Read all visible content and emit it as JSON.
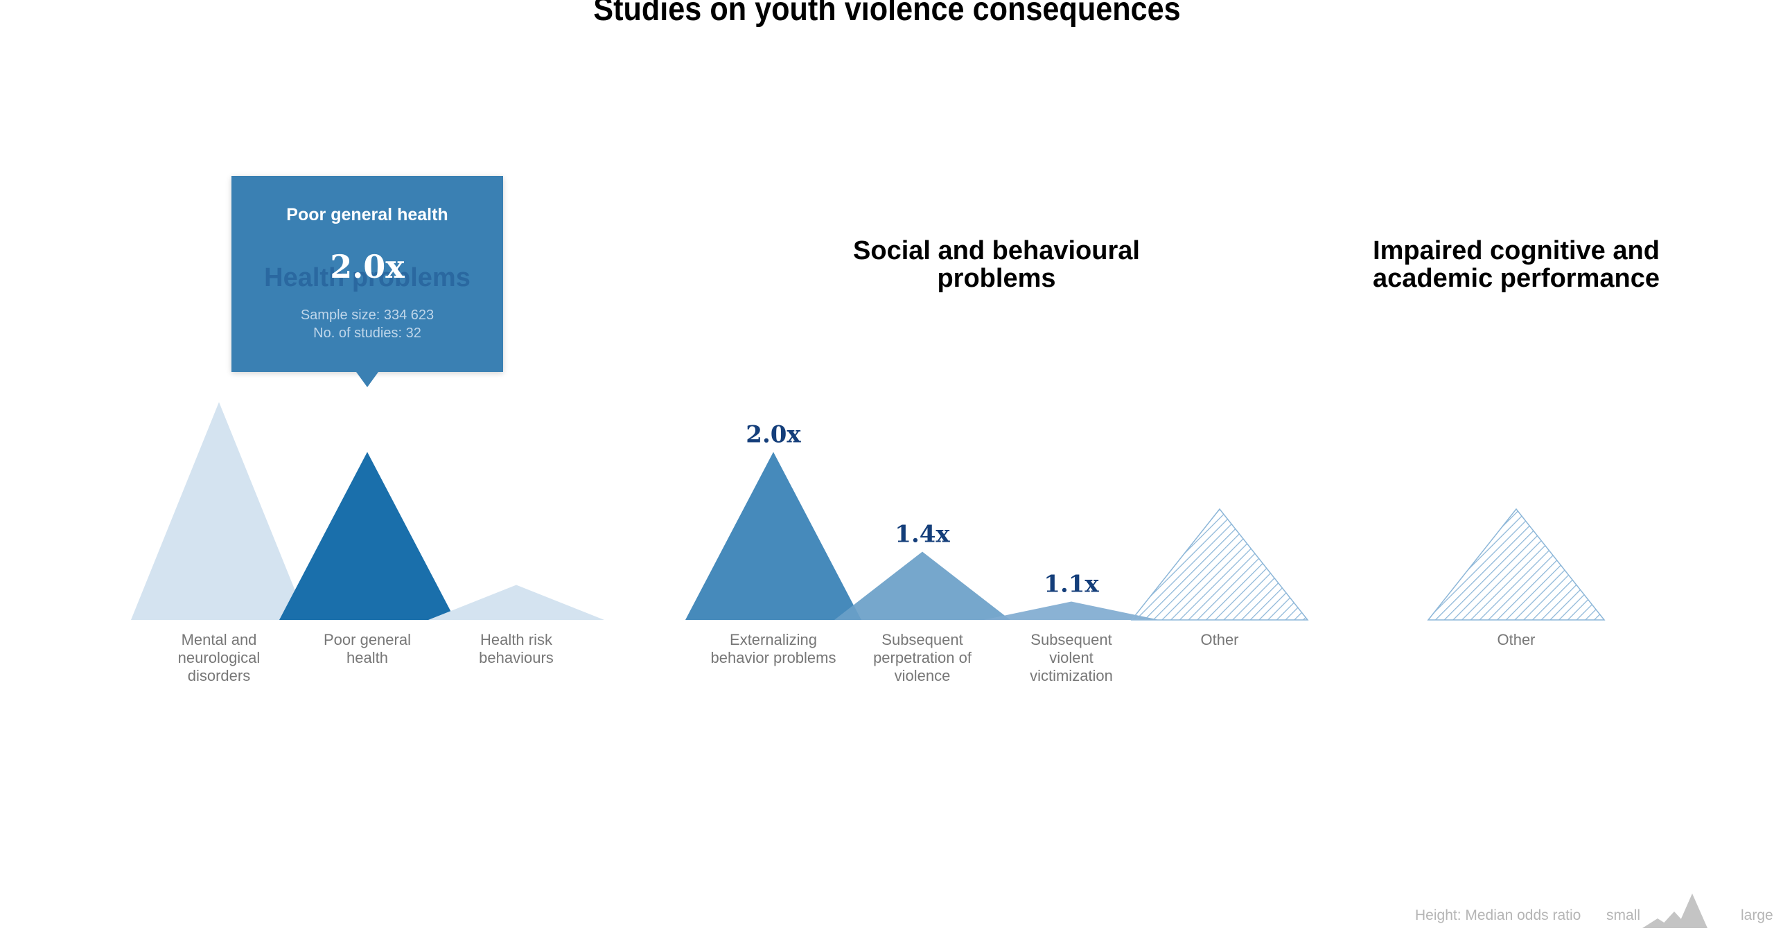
{
  "title": "Studies on youth violence consequences",
  "groups": [
    {
      "title": "Health problems"
    },
    {
      "title": "Social and behavioural\nproblems"
    },
    {
      "title": "Impaired cognitive and\nacademic performance"
    }
  ],
  "tooltip": {
    "title": "Poor general health",
    "value": "2.0x",
    "sample_size": "Sample size: 334 623",
    "studies": "No. of studies: 32"
  },
  "legend": {
    "height_label": "Height: Median odds ratio",
    "small": "small",
    "large": "large"
  },
  "colors": {
    "faded": "#d4e3f0",
    "highlight": "#1a6fab",
    "mid": "#3680b5",
    "light_mid": "#6a9fc8",
    "lighter": "#80abd0",
    "hatch": "#8cb6d8",
    "value_text": "#143e7a",
    "legend_gray": "#c4c4c4"
  },
  "chart_data": {
    "type": "area",
    "series_metric": "Median odds ratio",
    "groups": [
      {
        "name": "Health problems",
        "items": [
          {
            "label": "Mental and\nneurological\ndisorders",
            "value": 2.3,
            "style": "faded"
          },
          {
            "label": "Poor general\nhealth",
            "value": 2.0,
            "value_label": "",
            "style": "highlight"
          },
          {
            "label": "Health risk\nbehaviours",
            "value": 1.2,
            "style": "faded"
          }
        ]
      },
      {
        "name": "Social and behavioural problems",
        "items": [
          {
            "label": "Externalizing\nbehavior problems",
            "value": 2.0,
            "value_label": "2.0x",
            "style": "mid"
          },
          {
            "label": "Subsequent\nperpetration of\nviolence",
            "value": 1.4,
            "value_label": "1.4x",
            "style": "light_mid"
          },
          {
            "label": "Subsequent\nviolent\nvictimization",
            "value": 1.1,
            "value_label": "1.1x",
            "style": "lighter"
          },
          {
            "label": "Other",
            "value": null,
            "style": "hatch"
          }
        ]
      },
      {
        "name": "Impaired cognitive and academic performance",
        "items": [
          {
            "label": "Other",
            "value": null,
            "style": "hatch"
          }
        ]
      }
    ]
  }
}
